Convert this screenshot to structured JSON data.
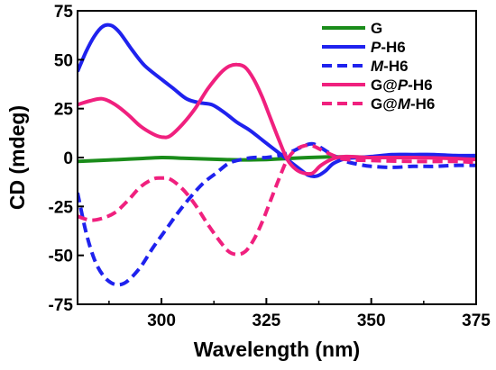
{
  "chart_data": {
    "type": "line",
    "title": "",
    "xlabel": "Wavelength (nm)",
    "ylabel": "CD (mdeg)",
    "xlim": [
      280,
      375
    ],
    "ylim": [
      -75,
      75
    ],
    "x_ticks": [
      300,
      325,
      350,
      375
    ],
    "y_ticks": [
      75,
      50,
      25,
      0,
      -25,
      -50,
      -75
    ],
    "x_tick_labels": [
      "300",
      "325",
      "350",
      "375"
    ],
    "y_tick_labels": [
      "75",
      "50",
      "25",
      "0",
      "-25",
      "-50",
      "-75"
    ],
    "grid": false,
    "legend_position": "top-right",
    "series": [
      {
        "name": "G",
        "name_prefix": "G",
        "name_italic": "",
        "name_suffix": "",
        "color": "#1a8c1a",
        "dash": "solid",
        "points": [
          [
            280,
            -2
          ],
          [
            285,
            -1.5
          ],
          [
            290,
            -1
          ],
          [
            295,
            -0.5
          ],
          [
            300,
            0
          ],
          [
            305,
            -0.3
          ],
          [
            310,
            -0.7
          ],
          [
            315,
            -1
          ],
          [
            320,
            -1.2
          ],
          [
            325,
            -1
          ],
          [
            330,
            -0.5
          ],
          [
            335,
            0
          ],
          [
            340,
            0.3
          ],
          [
            345,
            0.3
          ],
          [
            350,
            0.2
          ],
          [
            355,
            0.3
          ],
          [
            360,
            0.5
          ],
          [
            365,
            0.5
          ],
          [
            370,
            0.3
          ],
          [
            375,
            0.5
          ]
        ]
      },
      {
        "name": "P-H6",
        "name_prefix": "",
        "name_italic": "P",
        "name_suffix": "-H6",
        "color": "#1f22ee",
        "dash": "solid",
        "points": [
          [
            280,
            44
          ],
          [
            282,
            54
          ],
          [
            284,
            62
          ],
          [
            286,
            67
          ],
          [
            288,
            67.5
          ],
          [
            290,
            64
          ],
          [
            293,
            55
          ],
          [
            296,
            47
          ],
          [
            300,
            40
          ],
          [
            303,
            35
          ],
          [
            306,
            30
          ],
          [
            309,
            28
          ],
          [
            312,
            27
          ],
          [
            315,
            23
          ],
          [
            318,
            18
          ],
          [
            321,
            14
          ],
          [
            324,
            9
          ],
          [
            327,
            4
          ],
          [
            330,
            -1
          ],
          [
            333,
            -6
          ],
          [
            335,
            -9
          ],
          [
            337,
            -9.5
          ],
          [
            339,
            -7
          ],
          [
            341,
            -3
          ],
          [
            344,
            -0.5
          ],
          [
            347,
            0
          ],
          [
            350,
            0.5
          ],
          [
            355,
            1.5
          ],
          [
            360,
            1.5
          ],
          [
            365,
            1.5
          ],
          [
            370,
            1
          ],
          [
            375,
            1
          ]
        ]
      },
      {
        "name": "M-H6",
        "name_prefix": "",
        "name_italic": "M",
        "name_suffix": "-H6",
        "color": "#1f22ee",
        "dash": "dashed",
        "points": [
          [
            280,
            -18
          ],
          [
            282,
            -38
          ],
          [
            284,
            -52
          ],
          [
            286,
            -60
          ],
          [
            288,
            -64
          ],
          [
            290,
            -65
          ],
          [
            292,
            -63
          ],
          [
            295,
            -56
          ],
          [
            298,
            -46
          ],
          [
            301,
            -37
          ],
          [
            304,
            -28
          ],
          [
            307,
            -20
          ],
          [
            310,
            -13
          ],
          [
            313,
            -8
          ],
          [
            316,
            -3
          ],
          [
            319,
            -1
          ],
          [
            322,
            0
          ],
          [
            325,
            0
          ],
          [
            328,
            1
          ],
          [
            331,
            3
          ],
          [
            334,
            6
          ],
          [
            336,
            7
          ],
          [
            338,
            5
          ],
          [
            341,
            1
          ],
          [
            344,
            -2
          ],
          [
            347,
            -3.5
          ],
          [
            350,
            -4.5
          ],
          [
            355,
            -5
          ],
          [
            360,
            -4.5
          ],
          [
            365,
            -4.5
          ],
          [
            370,
            -4
          ],
          [
            375,
            -4
          ]
        ]
      },
      {
        "name": "G@P-H6",
        "name_prefix": "G@",
        "name_italic": "P",
        "name_suffix": "-H6",
        "color": "#f0207e",
        "dash": "solid",
        "points": [
          [
            280,
            27
          ],
          [
            283,
            29
          ],
          [
            286,
            30
          ],
          [
            289,
            27
          ],
          [
            292,
            22
          ],
          [
            295,
            16
          ],
          [
            298,
            12
          ],
          [
            300,
            10.5
          ],
          [
            302,
            11
          ],
          [
            305,
            17
          ],
          [
            308,
            25
          ],
          [
            311,
            35
          ],
          [
            314,
            43
          ],
          [
            316,
            46.5
          ],
          [
            318,
            47.5
          ],
          [
            320,
            46
          ],
          [
            322,
            40
          ],
          [
            324,
            31
          ],
          [
            326,
            20
          ],
          [
            328,
            9
          ],
          [
            330,
            -1
          ],
          [
            332,
            -6
          ],
          [
            334,
            -8
          ],
          [
            336,
            -8
          ],
          [
            338,
            -4
          ],
          [
            341,
            -0.5
          ],
          [
            344,
            0.5
          ],
          [
            350,
            0
          ],
          [
            360,
            0
          ],
          [
            370,
            -0.5
          ],
          [
            375,
            -1
          ]
        ]
      },
      {
        "name": "G@M-H6",
        "name_prefix": "G@",
        "name_italic": "M",
        "name_suffix": "-H6",
        "color": "#f0207e",
        "dash": "dashed",
        "points": [
          [
            280,
            -30
          ],
          [
            283,
            -32
          ],
          [
            286,
            -31
          ],
          [
            289,
            -28
          ],
          [
            292,
            -22
          ],
          [
            295,
            -15
          ],
          [
            298,
            -11
          ],
          [
            300,
            -10.5
          ],
          [
            302,
            -11
          ],
          [
            305,
            -16
          ],
          [
            308,
            -24
          ],
          [
            311,
            -34
          ],
          [
            314,
            -43
          ],
          [
            316,
            -48
          ],
          [
            318,
            -49.5
          ],
          [
            320,
            -48
          ],
          [
            322,
            -42
          ],
          [
            324,
            -33
          ],
          [
            326,
            -22
          ],
          [
            328,
            -11
          ],
          [
            330,
            -1
          ],
          [
            332,
            4
          ],
          [
            334,
            6
          ],
          [
            336,
            6
          ],
          [
            338,
            4
          ],
          [
            341,
            1
          ],
          [
            344,
            -1
          ],
          [
            350,
            -1.5
          ],
          [
            360,
            -2
          ],
          [
            370,
            -2
          ],
          [
            375,
            -2.5
          ]
        ]
      }
    ]
  }
}
